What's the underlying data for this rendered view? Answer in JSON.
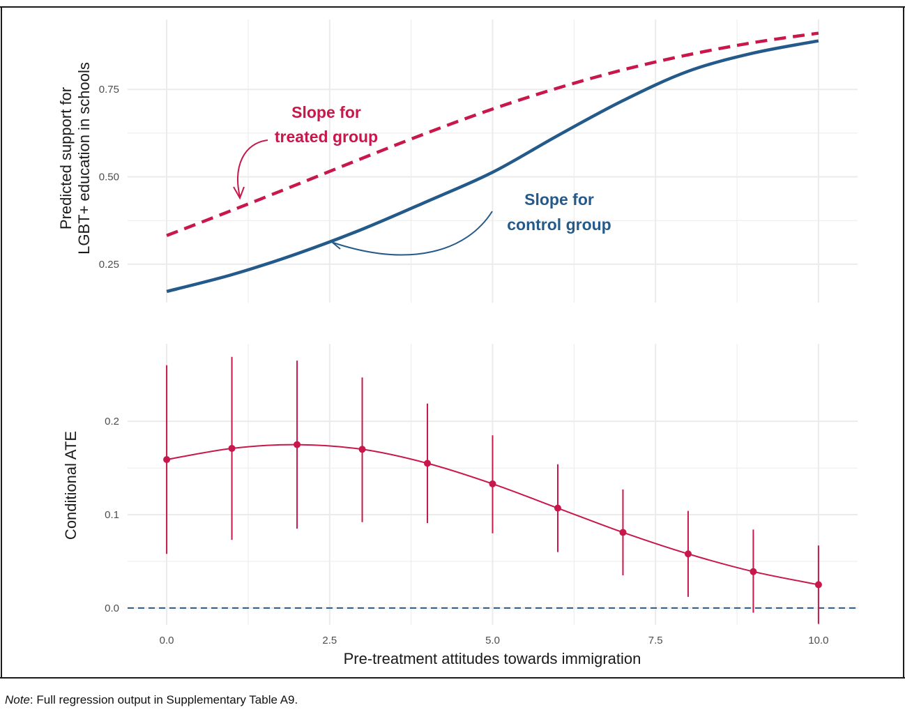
{
  "colors": {
    "treated": "#c8174a",
    "control": "#245a8a",
    "cate": "#c8174a",
    "zero_line": "#245a8a",
    "grid": "#ebebeb"
  },
  "note": {
    "label": "Note",
    "text": ": Full regression output in Supplementary Table A9."
  },
  "chart_data": [
    {
      "type": "line",
      "panel": "top",
      "ylabel_line1": "Predicted support for",
      "ylabel_line2": "LGBT+ education in schools",
      "xlim": [
        -0.6,
        10.6
      ],
      "ylim": [
        0.14,
        0.95
      ],
      "y_ticks": [
        0.25,
        0.5,
        0.75
      ],
      "y_tick_labels": [
        "0.25",
        "0.50",
        "0.75"
      ],
      "x_ticks": [
        0,
        2.5,
        5,
        7.5,
        10
      ],
      "grid": true,
      "series": [
        {
          "key": "treated",
          "style": "dashed",
          "x": [
            0,
            1,
            2,
            3,
            4,
            5,
            6,
            7,
            8,
            9,
            10
          ],
          "y": [
            0.332,
            0.404,
            0.478,
            0.553,
            0.626,
            0.694,
            0.754,
            0.806,
            0.849,
            0.884,
            0.911
          ]
        },
        {
          "key": "control",
          "style": "solid",
          "x": [
            0,
            1,
            2,
            3,
            4,
            5,
            6,
            7,
            8,
            9,
            10
          ],
          "y": [
            0.172,
            0.22,
            0.28,
            0.35,
            0.43,
            0.513,
            0.618,
            0.718,
            0.802,
            0.854,
            0.889
          ]
        }
      ],
      "annotations": [
        {
          "line1": "Slope for",
          "line2": "treated group",
          "series": "treated"
        },
        {
          "line1": "Slope for",
          "line2": "control group",
          "series": "control"
        }
      ]
    },
    {
      "type": "line",
      "panel": "bottom",
      "ylabel": "Conditional ATE",
      "xlabel": "Pre-treatment attitudes towards immigration",
      "xlim": [
        -0.6,
        10.6
      ],
      "ylim": [
        -0.018,
        0.283
      ],
      "y_ticks": [
        0,
        0.1,
        0.2
      ],
      "y_tick_labels": [
        "0.0",
        "0.1",
        "0.2"
      ],
      "x_ticks": [
        0,
        2.5,
        5,
        7.5,
        10
      ],
      "x_tick_labels": [
        "0.0",
        "2.5",
        "5.0",
        "7.5",
        "10.0"
      ],
      "grid": true,
      "reference_line": {
        "y": 0,
        "style": "dashed"
      },
      "x": [
        0,
        1,
        2,
        3,
        4,
        5,
        6,
        7,
        8,
        9,
        10
      ],
      "estimate": [
        0.159,
        0.171,
        0.175,
        0.17,
        0.155,
        0.133,
        0.107,
        0.081,
        0.058,
        0.039,
        0.025
      ],
      "lower": [
        0.058,
        0.073,
        0.085,
        0.092,
        0.091,
        0.08,
        0.06,
        0.035,
        0.012,
        -0.005,
        -0.017
      ],
      "upper": [
        0.26,
        0.269,
        0.265,
        0.247,
        0.219,
        0.185,
        0.154,
        0.127,
        0.104,
        0.084,
        0.067
      ]
    }
  ]
}
